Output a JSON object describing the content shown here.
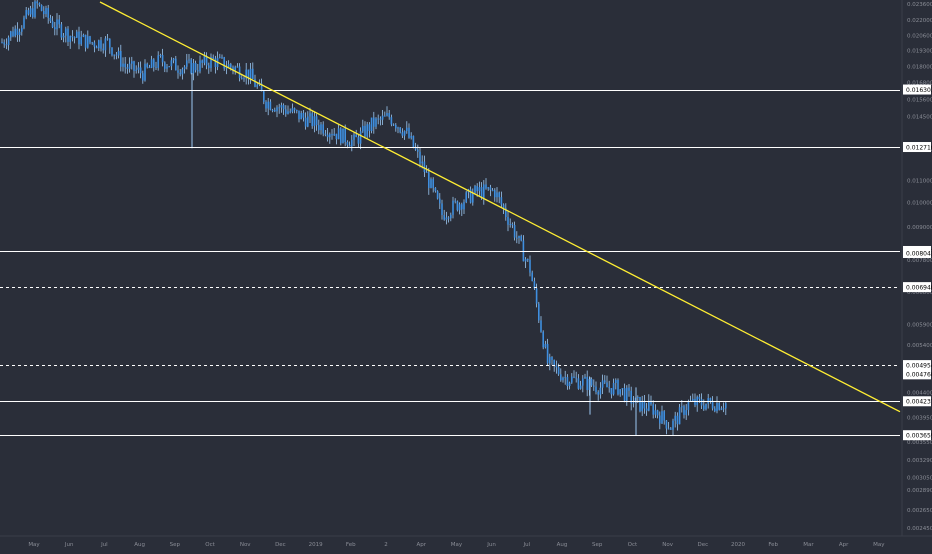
{
  "chart_data": {
    "type": "candlestick",
    "symbol_quote_scale": "log",
    "colors": {
      "background": "#2a2e39",
      "candle": "#3f8fe0",
      "candle_wick": "#9cc8f2",
      "trendline": "#ffee33",
      "level_line": "#ffffff",
      "axis_text": "#8a8d96",
      "label_bg": "#ffffff",
      "label_text": "#000000"
    },
    "ylim": [
      0.00245,
      0.0238
    ],
    "y_ticks": [
      "0.023600",
      "0.022000",
      "0.020600",
      "0.019300",
      "0.018000",
      "0.016800",
      "0.015600",
      "0.014500",
      "0.012600",
      "0.011000",
      "0.010000",
      "0.009000",
      "0.007800",
      "0.006800",
      "0.005900",
      "0.005400",
      "0.004400",
      "0.003950",
      "0.003550",
      "0.003290",
      "0.003050",
      "0.002890",
      "0.002650",
      "0.002450"
    ],
    "x_labels": [
      "May",
      "Jun",
      "Jul",
      "Aug",
      "Sep",
      "Oct",
      "Nov",
      "Dec",
      "2019",
      "Feb",
      "2",
      "Apr",
      "May",
      "Jun",
      "Jul",
      "Aug",
      "Sep",
      "Oct",
      "Nov",
      "Dec",
      "2020",
      "Feb",
      "Mar",
      "Apr",
      "May"
    ],
    "horizontal_levels": [
      {
        "value": "0.016303",
        "style": "solid"
      },
      {
        "value": "0.012716",
        "style": "solid"
      },
      {
        "value": "0.008113",
        "style": "solid"
      },
      {
        "value": "0.006940",
        "style": "dashed"
      },
      {
        "value": "0.004954",
        "style": "dashed"
      },
      {
        "value": "0.004237",
        "style": "solid"
      },
      {
        "value": "0.003659",
        "style": "solid"
      }
    ],
    "extra_price_labels": [
      "0.008043",
      "0.004760"
    ],
    "trendline": {
      "start": [
        "Jun 2018",
        0.0238
      ],
      "end": [
        "Apr 2020",
        0.00405
      ]
    },
    "price_series": [
      [
        "May 2018",
        0.02
      ],
      [
        "late May",
        0.0215
      ],
      [
        "Jun 2018",
        0.0235
      ],
      [
        "mid Jun",
        0.0215
      ],
      [
        "Jul 2018",
        0.0205
      ],
      [
        "mid Jul",
        0.02
      ],
      [
        "Aug 2018",
        0.02
      ],
      [
        "mid Aug",
        0.018
      ],
      [
        "Sep 2018",
        0.0175
      ],
      [
        "mid Sep",
        0.0185
      ],
      [
        "Oct 2018",
        0.018
      ],
      [
        "mid Oct",
        0.018
      ],
      [
        "Nov 2018",
        0.0185
      ],
      [
        "mid Nov",
        0.018
      ],
      [
        "Dec 2018",
        0.0175
      ],
      [
        "mid Dec",
        0.0155
      ],
      [
        "Jan 2019",
        0.015
      ],
      [
        "mid Jan",
        0.0145
      ],
      [
        "Feb 2019",
        0.014
      ],
      [
        "mid Feb",
        0.0135
      ],
      [
        "Mar 2019",
        0.013
      ],
      [
        "mid Mar",
        0.014
      ],
      [
        "Apr 2019",
        0.0145
      ],
      [
        "mid Apr",
        0.0135
      ],
      [
        "May 2019",
        0.0115
      ],
      [
        "mid May",
        0.0095
      ],
      [
        "Jun 2019",
        0.01
      ],
      [
        "mid Jun",
        0.0105
      ],
      [
        "Jul 2019",
        0.0105
      ],
      [
        "mid Jul",
        0.009
      ],
      [
        "Aug 2019",
        0.0075
      ],
      [
        "mid Aug",
        0.005
      ],
      [
        "Sep 2019",
        0.0047
      ],
      [
        "mid Sep",
        0.0046
      ],
      [
        "Oct 2019",
        0.0045
      ],
      [
        "mid Oct",
        0.0045
      ],
      [
        "Nov 2019",
        0.0042
      ],
      [
        "mid Nov",
        0.0041
      ],
      [
        "Dec 2019",
        0.0038
      ],
      [
        "late Dec",
        0.0042
      ]
    ]
  }
}
